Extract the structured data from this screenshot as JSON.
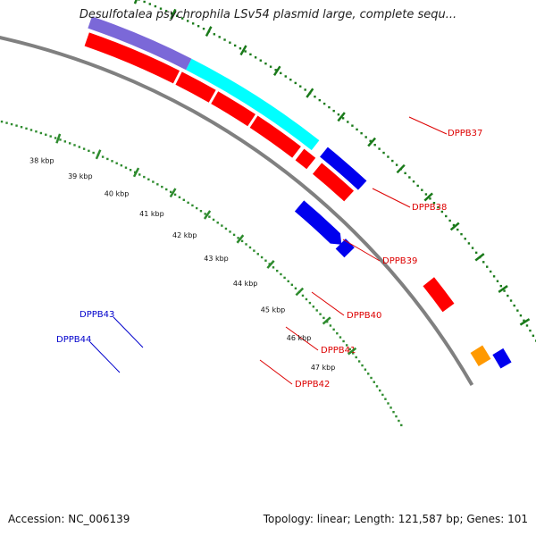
{
  "title": "Desulfotalea psychrophila LSv54 plasmid large, complete sequ...",
  "footer": {
    "accession": "Accession: NC_006139",
    "summary": "Topology: linear; Length: 121,587 bp; Genes: 101"
  },
  "colors": {
    "backbone": "#808080",
    "tick_outer": "#2e8b2e",
    "tick_inner": "#1a7a1a",
    "red": "#ff0000",
    "blue": "#0000ee",
    "cyan": "#00ffff",
    "purple": "#7b68d8",
    "orange": "#ff9900",
    "label_red": "#dd0000",
    "label_blue": "#0000cc"
  },
  "ticks": [
    "38 kbp",
    "39 kbp",
    "40 kbp",
    "41 kbp",
    "42 kbp",
    "43 kbp",
    "44 kbp",
    "45 kbp",
    "46 kbp",
    "47 kbp"
  ],
  "gene_labels": [
    {
      "text": "DPPB37",
      "color": "red"
    },
    {
      "text": "DPPB38",
      "color": "red"
    },
    {
      "text": "DPPB39",
      "color": "red"
    },
    {
      "text": "DPPB40",
      "color": "red"
    },
    {
      "text": "DPPB41",
      "color": "red"
    },
    {
      "text": "DPPB42",
      "color": "red"
    },
    {
      "text": "DPPB43",
      "color": "blue"
    },
    {
      "text": "DPPB44",
      "color": "blue"
    }
  ]
}
